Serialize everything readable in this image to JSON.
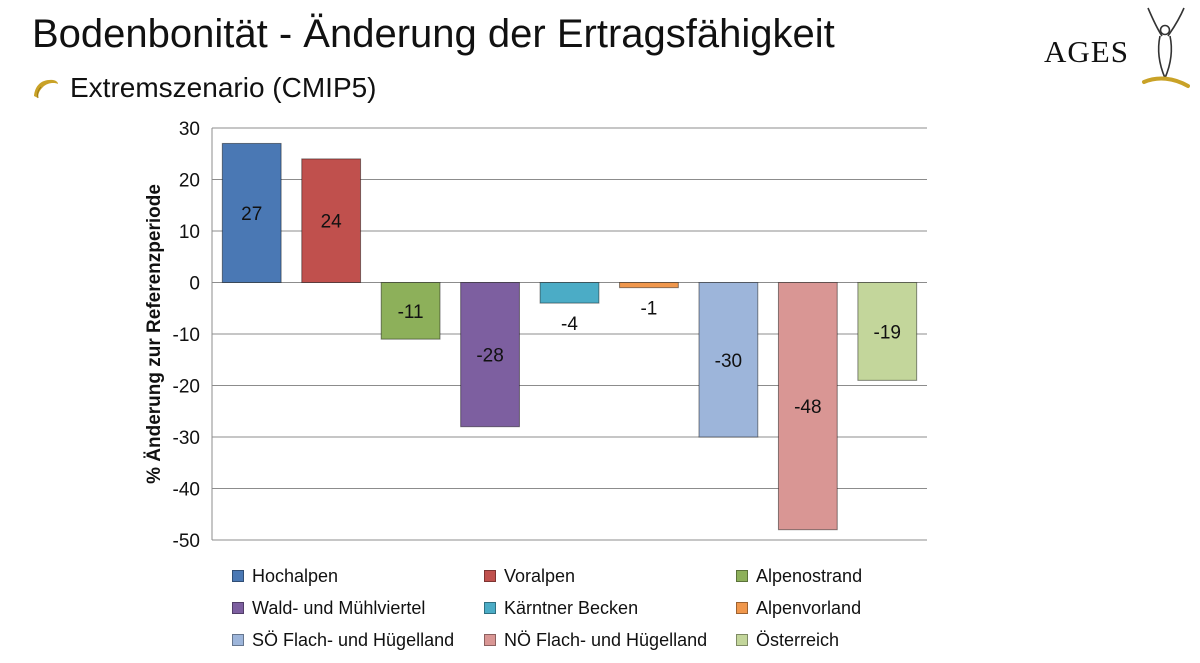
{
  "header": {
    "title": "Bodenbonität - Änderung der Ertragsfähigkeit",
    "subtitle": "Extremszenario (CMIP5)",
    "bullet_icon": "gold-leaf-bullet-icon",
    "logo_text": "AGES",
    "logo_icon": "ages-human-figure-logo-icon"
  },
  "colors": {
    "title": "#111111",
    "gold": "#c9a227",
    "grid": "#8c8c8c"
  },
  "chart_data": {
    "type": "bar",
    "title": "",
    "xlabel": "",
    "ylabel": "% Änderung zur Referenzperiode",
    "ylim": [
      -50,
      30
    ],
    "yticks": [
      30,
      20,
      10,
      0,
      -10,
      -20,
      -30,
      -40,
      -50
    ],
    "grid": true,
    "legend_position": "bottom",
    "series": [
      {
        "name": "Hochalpen",
        "value": 27,
        "color": "#4a78b4"
      },
      {
        "name": "Voralpen",
        "value": 24,
        "color": "#c0504d"
      },
      {
        "name": "Alpenostrand",
        "value": -11,
        "color": "#8db05a"
      },
      {
        "name": "Wald- und Mühlviertel",
        "value": -28,
        "color": "#7d5fa0"
      },
      {
        "name": "Kärntner Becken",
        "value": -4,
        "color": "#4bacc6"
      },
      {
        "name": "Alpenvorland",
        "value": -1,
        "color": "#f0974c"
      },
      {
        "name": "SÖ Flach- und Hügelland",
        "value": -30,
        "color": "#9db5da"
      },
      {
        "name": "NÖ Flach- und Hügelland",
        "value": -48,
        "color": "#d99694"
      },
      {
        "name": "Österreich",
        "value": -19,
        "color": "#c3d69b"
      }
    ]
  }
}
